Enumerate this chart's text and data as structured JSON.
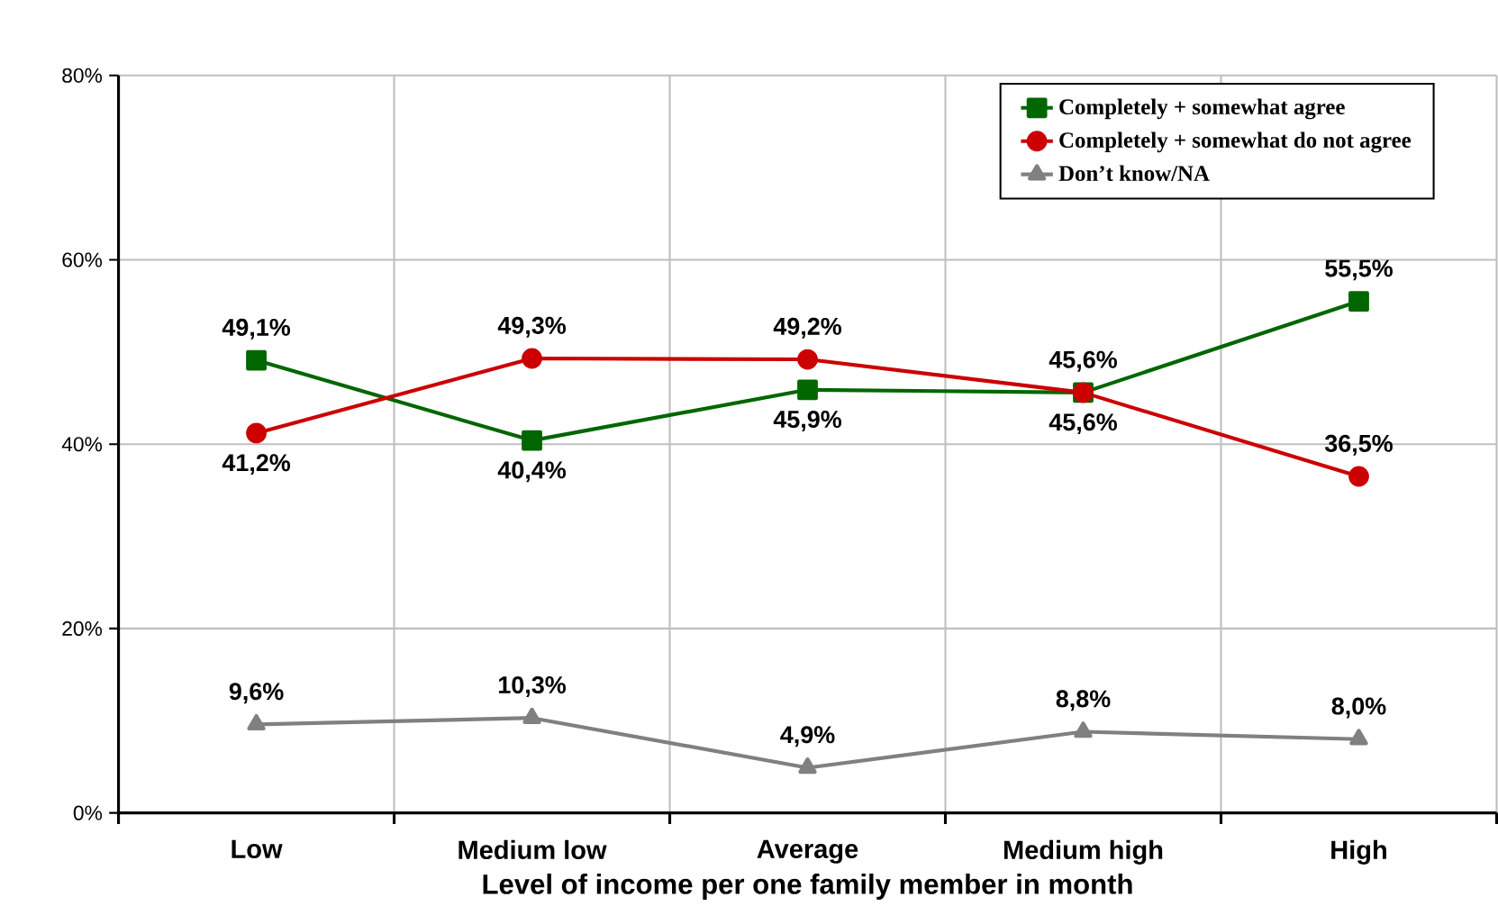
{
  "chart_data": {
    "type": "line",
    "xlabel": "Level of income per one family member in month",
    "categories": [
      "Low",
      "Medium low",
      "Average",
      "Medium high",
      "High"
    ],
    "series": [
      {
        "name": "Completely + somewhat agree",
        "color": "#006600",
        "marker": "square",
        "values": [
          49.1,
          40.4,
          45.9,
          45.6,
          55.5
        ],
        "value_labels": [
          "49,1%",
          "40,4%",
          "45,9%",
          "45,6%",
          "55,5%"
        ]
      },
      {
        "name": "Completely + somewhat do not agree",
        "color": "#cc0000",
        "marker": "circle",
        "values": [
          41.2,
          49.3,
          49.2,
          45.6,
          36.5
        ],
        "value_labels": [
          "41,2%",
          "49,3%",
          "49,2%",
          "45,6%",
          "36,5%"
        ]
      },
      {
        "name": "Don’t know/NA",
        "color": "#808080",
        "marker": "triangle",
        "values": [
          9.6,
          10.3,
          4.9,
          8.8,
          8.0
        ],
        "value_labels": [
          "9,6%",
          "10,3%",
          "4,9%",
          "8,8%",
          "8,0%"
        ]
      }
    ],
    "ylim": [
      0,
      80
    ],
    "yticks": [
      {
        "value": 0,
        "label": "0%"
      },
      {
        "value": 20,
        "label": "20%"
      },
      {
        "value": 40,
        "label": "40%"
      },
      {
        "value": 60,
        "label": "60%"
      },
      {
        "value": 80,
        "label": "80%"
      }
    ],
    "grid": true,
    "legend": "top right",
    "line_style": "solid"
  }
}
